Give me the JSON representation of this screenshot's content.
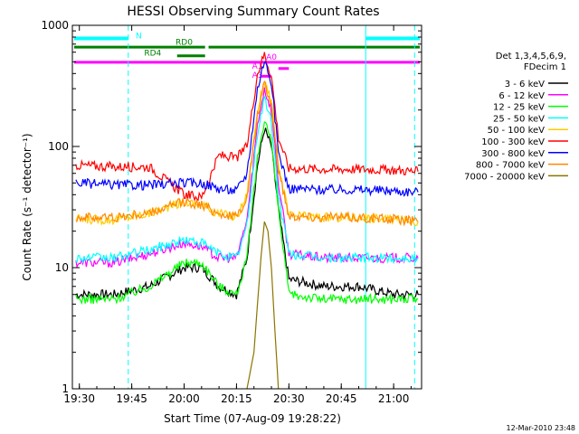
{
  "chart_data": {
    "type": "line",
    "title": "HESSI Observing Summary Count Rates",
    "xlabel": "Start Time (07-Aug-09 19:28:22)",
    "ylabel": "Count Rate (s⁻¹ detector⁻¹)",
    "yscale": "log",
    "ylim": [
      1,
      1000
    ],
    "xlim": [
      "19:28",
      "21:08"
    ],
    "x_ticks": [
      "19:30",
      "19:45",
      "20:00",
      "20:15",
      "20:30",
      "20:45",
      "21:00"
    ],
    "y_ticks": [
      "1",
      "10",
      "100",
      "1000"
    ],
    "legend_header": [
      "Det 1,3,4,5,6,9,",
      "FDecim 1"
    ],
    "legend_position": "right",
    "footer": "12-Mar-2010 23:48",
    "series": [
      {
        "name": "3 - 6 keV",
        "color": "#000000",
        "x": [
          "19:29",
          "19:40",
          "19:50",
          "20:00",
          "20:05",
          "20:10",
          "20:15",
          "20:18",
          "20:21",
          "20:23",
          "20:25",
          "20:27",
          "20:30",
          "20:40",
          "20:50",
          "21:00",
          "21:07"
        ],
        "y": [
          6,
          6,
          7,
          10,
          10,
          7,
          6,
          12,
          70,
          140,
          100,
          30,
          8,
          7,
          7,
          6,
          6
        ]
      },
      {
        "name": "6 - 12 keV",
        "color": "#ff00ff",
        "x": [
          "19:29",
          "19:40",
          "19:50",
          "20:00",
          "20:05",
          "20:10",
          "20:15",
          "20:18",
          "20:21",
          "20:23",
          "20:25",
          "20:27",
          "20:30",
          "20:40",
          "20:50",
          "21:00",
          "21:07"
        ],
        "y": [
          11,
          11,
          13,
          16,
          15,
          12,
          12,
          25,
          150,
          300,
          200,
          50,
          13,
          12,
          12,
          12,
          12
        ]
      },
      {
        "name": "12 - 25 keV",
        "color": "#00ff00",
        "x": [
          "19:29",
          "19:40",
          "19:50",
          "20:00",
          "20:05",
          "20:10",
          "20:15",
          "20:18",
          "20:21",
          "20:23",
          "20:25",
          "20:27",
          "20:30",
          "20:40",
          "20:50",
          "21:00",
          "21:07"
        ],
        "y": [
          5.5,
          5.5,
          7,
          11,
          11,
          7,
          6,
          12,
          80,
          170,
          110,
          30,
          6,
          5.5,
          5.5,
          5.5,
          5.5
        ]
      },
      {
        "name": "25 - 50 keV",
        "color": "#00ffff",
        "x": [
          "19:29",
          "19:40",
          "19:50",
          "20:00",
          "20:05",
          "20:10",
          "20:15",
          "20:18",
          "20:21",
          "20:23",
          "20:25",
          "20:27",
          "20:30",
          "20:40",
          "20:50",
          "21:00",
          "21:07"
        ],
        "y": [
          12,
          12,
          14,
          17,
          16,
          13,
          12,
          22,
          130,
          250,
          160,
          40,
          13,
          12,
          12,
          12,
          12
        ]
      },
      {
        "name": "50 - 100 keV",
        "color": "#ffcc00",
        "x": [
          "19:29",
          "19:40",
          "19:50",
          "20:00",
          "20:05",
          "20:10",
          "20:15",
          "20:18",
          "20:21",
          "20:23",
          "20:25",
          "20:27",
          "20:30",
          "20:40",
          "20:50",
          "21:00",
          "21:07"
        ],
        "y": [
          25,
          25,
          28,
          35,
          33,
          28,
          26,
          40,
          200,
          350,
          230,
          70,
          27,
          26,
          26,
          25,
          24
        ]
      },
      {
        "name": "100 - 300 keV",
        "color": "#ff0000",
        "x": [
          "19:29",
          "19:40",
          "19:50",
          "20:00",
          "20:05",
          "20:10",
          "20:15",
          "20:18",
          "20:21",
          "20:23",
          "20:25",
          "20:27",
          "20:30",
          "20:40",
          "20:50",
          "21:00",
          "21:07"
        ],
        "y": [
          70,
          68,
          68,
          40,
          38,
          85,
          80,
          100,
          400,
          580,
          380,
          120,
          66,
          65,
          65,
          64,
          62
        ]
      },
      {
        "name": "300 - 800 keV",
        "color": "#0000ff",
        "x": [
          "19:29",
          "19:40",
          "19:50",
          "20:00",
          "20:05",
          "20:10",
          "20:15",
          "20:18",
          "20:21",
          "20:23",
          "20:25",
          "20:27",
          "20:30",
          "20:40",
          "20:50",
          "21:00",
          "21:07"
        ],
        "y": [
          50,
          48,
          48,
          50,
          50,
          45,
          43,
          60,
          300,
          520,
          340,
          90,
          45,
          44,
          44,
          43,
          42
        ]
      },
      {
        "name": "800 - 7000 keV",
        "color": "#ff8800",
        "x": [
          "19:29",
          "19:40",
          "19:50",
          "20:00",
          "20:05",
          "20:10",
          "20:15",
          "20:18",
          "20:21",
          "20:23",
          "20:25",
          "20:27",
          "20:30",
          "20:40",
          "20:50",
          "21:00",
          "21:07"
        ],
        "y": [
          26,
          26,
          28,
          35,
          33,
          28,
          26,
          38,
          180,
          330,
          220,
          65,
          27,
          26,
          26,
          25,
          24
        ]
      },
      {
        "name": "7000 - 20000 keV",
        "color": "#8b7500",
        "x": [
          "20:18",
          "20:20",
          "20:21",
          "20:22",
          "20:23",
          "20:24",
          "20:25",
          "20:26",
          "20:27"
        ],
        "y": [
          1,
          2,
          5,
          12,
          24,
          20,
          10,
          3,
          1
        ]
      }
    ],
    "annotations": [
      {
        "label": "N",
        "color": "#00ffff"
      },
      {
        "label": "RD0",
        "color": "#008000"
      },
      {
        "label": "RD4",
        "color": "#008000"
      },
      {
        "label": "A1",
        "color": "#ff00ff"
      },
      {
        "label": "A0",
        "color": "#ff00ff"
      },
      {
        "label": "A3",
        "color": "#ff00ff"
      }
    ]
  }
}
